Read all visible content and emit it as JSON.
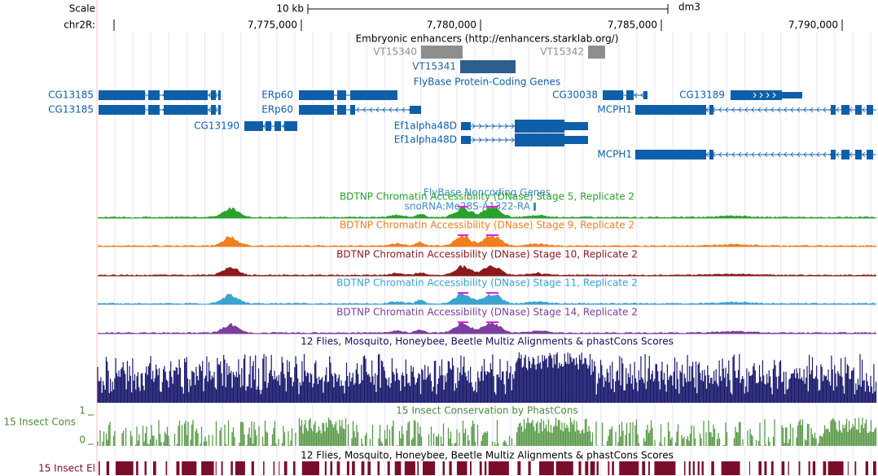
{
  "scale": {
    "label": "Scale",
    "size": "10 kb",
    "assembly": "dm3"
  },
  "position": {
    "chrom": "chr2R:",
    "ticks": [
      "7,775,000",
      "7,780,000",
      "7,785,000",
      "7,790,000"
    ]
  },
  "tracks": {
    "enhancers": {
      "title": "Embryonic enhancers (http://enhancers.starklab.org/)",
      "items": [
        "VT15340",
        "VT15342",
        "VT15341"
      ]
    },
    "genes": {
      "title": "FlyBase Protein-Coding Genes",
      "items": [
        "CG13185",
        "CG13185",
        "ERp60",
        "ERp60",
        "CG13190",
        "Ef1alpha48D",
        "Ef1alpha48D",
        "CG30038",
        "CG13189",
        "MCPH1",
        "MCPH1"
      ]
    },
    "noncoding": {
      "title": "FlyBase Noncoding Genes",
      "items": [
        "snoRNA:Me28S-A1322-RA"
      ]
    },
    "dnase": [
      "BDTNP Chromatin Accessibility (DNase) Stage 5, Replicate 2",
      "BDTNP Chromatin Accessibility (DNase) Stage 9, Replicate 2",
      "BDTNP Chromatin Accessibility (DNase) Stage 10, Replicate 2",
      "BDTNP Chromatin Accessibility (DNase) Stage 11, Replicate 2",
      "BDTNP Chromatin Accessibility (DNase) Stage 14, Replicate 2"
    ],
    "multiz": {
      "title": "12 Flies, Mosquito, Honeybee, Beetle Multiz Alignments & phastCons Scores"
    },
    "cons": {
      "title": "15 Insect Conservation by PhastCons",
      "label": "15 Insect Cons",
      "max": 1,
      "min": 0
    },
    "elements": {
      "title": "12 Flies, Mosquito, Honeybee, Beetle Multiz Alignments & phastCons Scores",
      "label": "15 Insect El"
    }
  }
}
